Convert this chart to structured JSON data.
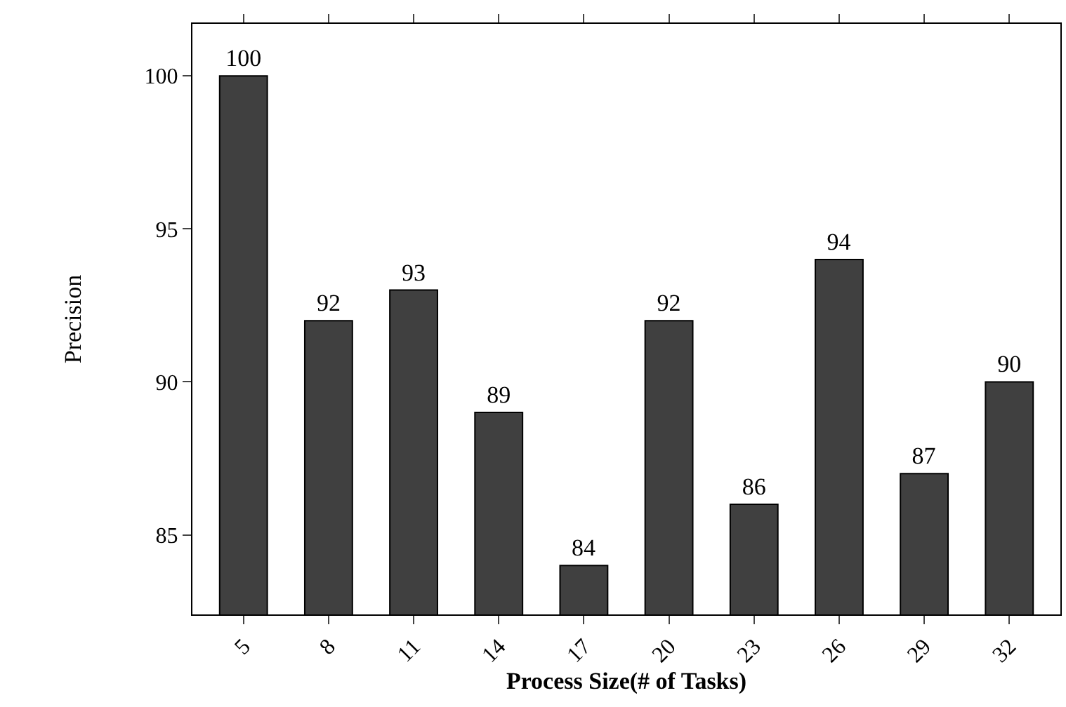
{
  "chart_data": {
    "type": "bar",
    "xlabel": "Process Size(# of Tasks)",
    "ylabel": "Precision",
    "categories": [
      "5",
      "8",
      "11",
      "14",
      "17",
      "20",
      "23",
      "26",
      "29",
      "32"
    ],
    "values": [
      100,
      92,
      93,
      89,
      84,
      92,
      86,
      94,
      87,
      90
    ],
    "color": "#404040",
    "ylim": [
      82.4,
      101.7
    ],
    "yticks": [
      85,
      90,
      95,
      100
    ],
    "data_labels": true
  }
}
